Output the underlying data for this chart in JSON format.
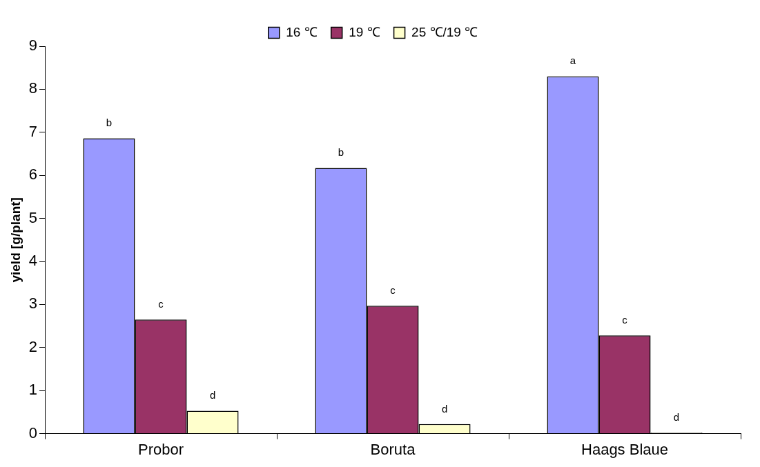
{
  "chart_data": {
    "type": "bar",
    "ylabel": "yield [g/plant]",
    "categories": [
      "Probor",
      "Boruta",
      "Haags Blaue"
    ],
    "series": [
      {
        "name": "16 ℃",
        "color": "#9999ff",
        "values": [
          6.86,
          6.17,
          8.3
        ],
        "value_labels": [
          "b",
          "b",
          "a"
        ]
      },
      {
        "name": "19 ℃",
        "color": "#993366",
        "values": [
          2.65,
          2.97,
          2.28
        ],
        "value_labels": [
          "c",
          "c",
          "c"
        ]
      },
      {
        "name": "25 ℃/19 ℃",
        "color": "#ffffcc",
        "values": [
          0.53,
          0.22,
          0.02
        ],
        "value_labels": [
          "d",
          "d",
          "d"
        ]
      }
    ],
    "ylim": [
      0,
      9
    ],
    "yticks": [
      0,
      1,
      2,
      3,
      4,
      5,
      6,
      7,
      8,
      9
    ],
    "grid": false,
    "legend": "top"
  }
}
